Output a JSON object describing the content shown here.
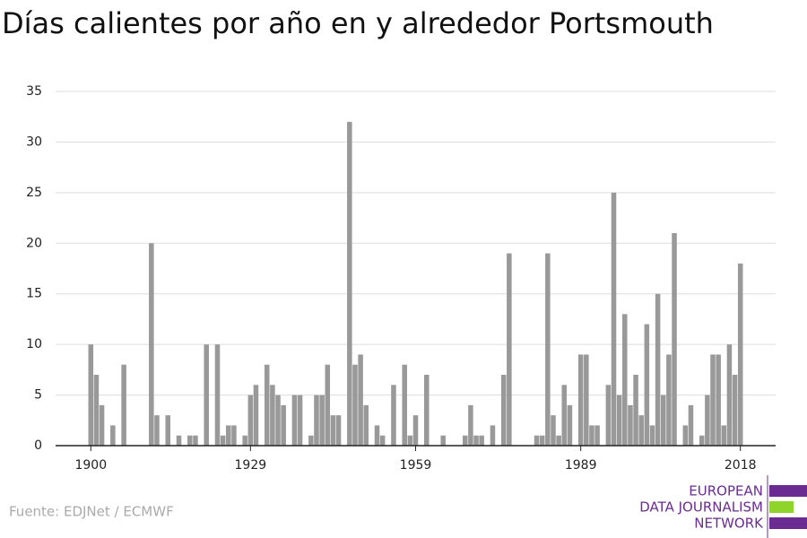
{
  "chart_data": {
    "type": "bar",
    "title": "Días calientes por año en y alrededor Portsmouth",
    "source": "Fuente: EDJNet / ECMWF",
    "logo": [
      "EUROPEAN",
      "DATA JOURNALISM",
      "NETWORK"
    ],
    "color": "#999999",
    "x": [
      1900,
      1901,
      1902,
      1903,
      1904,
      1905,
      1906,
      1907,
      1908,
      1909,
      1910,
      1911,
      1912,
      1913,
      1914,
      1915,
      1916,
      1917,
      1918,
      1919,
      1920,
      1921,
      1922,
      1923,
      1924,
      1925,
      1926,
      1927,
      1928,
      1929,
      1930,
      1931,
      1932,
      1933,
      1934,
      1935,
      1936,
      1937,
      1938,
      1939,
      1940,
      1941,
      1942,
      1943,
      1944,
      1945,
      1946,
      1947,
      1948,
      1949,
      1950,
      1951,
      1952,
      1953,
      1954,
      1955,
      1956,
      1957,
      1958,
      1959,
      1960,
      1961,
      1962,
      1963,
      1964,
      1965,
      1966,
      1967,
      1968,
      1969,
      1970,
      1971,
      1972,
      1973,
      1974,
      1975,
      1976,
      1977,
      1978,
      1979,
      1980,
      1981,
      1982,
      1983,
      1984,
      1985,
      1986,
      1987,
      1988,
      1989,
      1990,
      1991,
      1992,
      1993,
      1994,
      1995,
      1996,
      1997,
      1998,
      1999,
      2000,
      2001,
      2002,
      2003,
      2004,
      2005,
      2006,
      2007,
      2008,
      2009,
      2010,
      2011,
      2012,
      2013,
      2014,
      2015,
      2016,
      2017,
      2018
    ],
    "values": [
      10,
      7,
      4,
      0,
      2,
      0,
      8,
      0,
      0,
      0,
      0,
      20,
      3,
      0,
      3,
      0,
      1,
      0,
      1,
      1,
      0,
      10,
      0,
      10,
      1,
      2,
      2,
      0,
      1,
      5,
      6,
      0,
      8,
      6,
      5,
      4,
      0,
      5,
      5,
      0,
      1,
      5,
      5,
      8,
      3,
      3,
      0,
      32,
      8,
      9,
      4,
      0,
      2,
      1,
      0,
      6,
      0,
      8,
      1,
      3,
      0,
      7,
      0,
      0,
      1,
      0,
      0,
      0,
      1,
      4,
      1,
      1,
      0,
      2,
      0,
      7,
      19,
      0,
      0,
      0,
      0,
      1,
      1,
      19,
      3,
      1,
      6,
      4,
      0,
      9,
      9,
      2,
      2,
      0,
      6,
      25,
      5,
      13,
      4,
      7,
      3,
      12,
      2,
      15,
      5,
      9,
      21,
      0,
      2,
      4,
      0,
      1,
      5,
      9,
      9,
      2,
      10,
      7,
      18
    ],
    "xlim": [
      1893.6,
      2024.4
    ],
    "xticks": [
      1900,
      1929,
      1959,
      1989,
      2018
    ],
    "ylim": [
      0,
      35
    ],
    "yticks": [
      0,
      5,
      10,
      15,
      20,
      25,
      30,
      35
    ],
    "grid": true
  }
}
